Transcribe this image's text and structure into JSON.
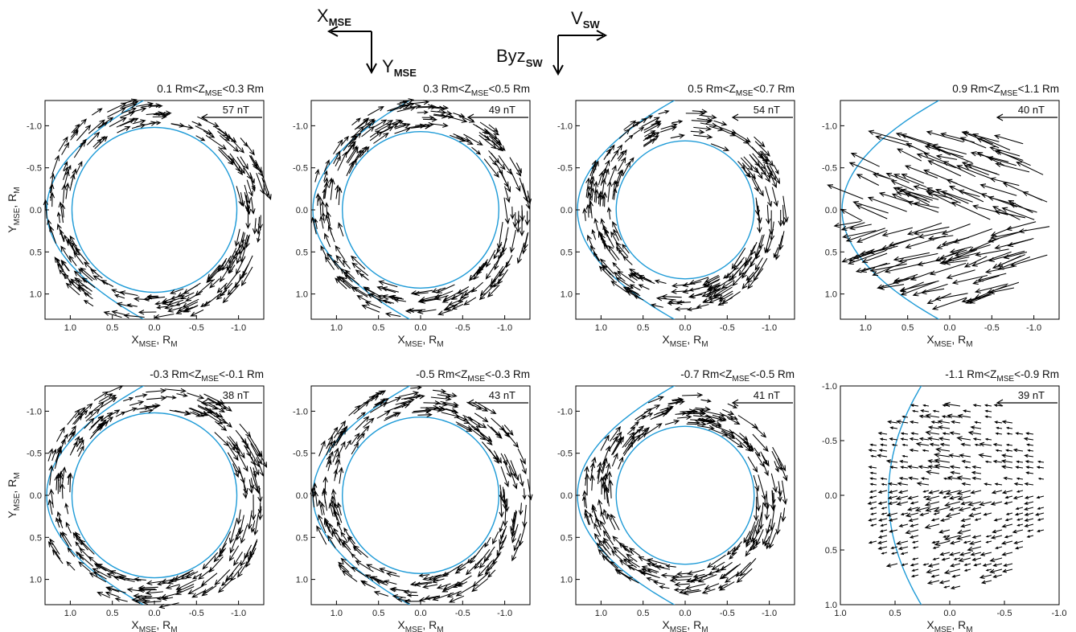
{
  "legend": {
    "x_label": "X",
    "x_sub": "MSE",
    "y_label": "Y",
    "y_sub": "MSE",
    "v_label": "V",
    "v_sub": "SW",
    "b_label": "Byz",
    "b_sub": "SW"
  },
  "colors": {
    "magnetopause": "#1f9bd7",
    "arrows": "#000000",
    "frame": "#000000"
  },
  "chart_data": [
    {
      "type": "quiver",
      "title_pre": "0.1 Rm<Z",
      "title_sub": "MSE",
      "title_post": "<0.3 Rm",
      "scale_label": "57 nT",
      "xlabel": "X",
      "xlabel_sub": "MSE",
      "xlabel_post": ", R",
      "xlabel_post_sub": "M",
      "ylabel": "Y",
      "ylabel_sub": "MSE",
      "ylabel_post": ", R",
      "ylabel_post_sub": "M",
      "xlim": [
        1.3,
        -1.3
      ],
      "ylim": [
        -1.3,
        1.3
      ],
      "xticks": [
        "1.0",
        "0.5",
        "0.0",
        "-0.5",
        "-1.0"
      ],
      "yticks": [
        "-1.0",
        "-0.5",
        "0.0",
        "0.5",
        "1.0"
      ],
      "planet_radius": 0.98,
      "pattern": "ring"
    },
    {
      "type": "quiver",
      "title_pre": "0.3 Rm<Z",
      "title_sub": "MSE",
      "title_post": "<0.5 Rm",
      "scale_label": "49 nT",
      "xlabel": "X",
      "xlabel_sub": "MSE",
      "xlabel_post": ", R",
      "xlabel_post_sub": "M",
      "ylabel": "",
      "ylabel_sub": "",
      "ylabel_post": "",
      "ylabel_post_sub": "",
      "xlim": [
        1.3,
        -1.3
      ],
      "ylim": [
        -1.3,
        1.3
      ],
      "xticks": [
        "1.0",
        "0.5",
        "0.0",
        "-0.5",
        "-1.0"
      ],
      "yticks": [
        "-1.0",
        "-0.5",
        "0.0",
        "0.5",
        "1.0"
      ],
      "planet_radius": 0.93,
      "pattern": "ring"
    },
    {
      "type": "quiver",
      "title_pre": "0.5 Rm<Z",
      "title_sub": "MSE",
      "title_post": "<0.7 Rm",
      "scale_label": "54 nT",
      "xlabel": "X",
      "xlabel_sub": "MSE",
      "xlabel_post": ", R",
      "xlabel_post_sub": "M",
      "ylabel": "",
      "ylabel_sub": "",
      "ylabel_post": "",
      "ylabel_post_sub": "",
      "xlim": [
        1.3,
        -1.3
      ],
      "ylim": [
        -1.3,
        1.3
      ],
      "xticks": [
        "1.0",
        "0.5",
        "0.0",
        "-0.5",
        "-1.0"
      ],
      "yticks": [
        "-1.0",
        "-0.5",
        "0.0",
        "0.5",
        "1.0"
      ],
      "planet_radius": 0.82,
      "pattern": "ring"
    },
    {
      "type": "quiver",
      "title_pre": "0.9 Rm<Z",
      "title_sub": "MSE",
      "title_post": "<1.1 Rm",
      "scale_label": "40 nT",
      "xlabel": "X",
      "xlabel_sub": "MSE",
      "xlabel_post": ", R",
      "xlabel_post_sub": "M",
      "ylabel": "",
      "ylabel_sub": "",
      "ylabel_post": "",
      "ylabel_post_sub": "",
      "xlim": [
        1.3,
        -1.3
      ],
      "ylim": [
        -1.3,
        1.3
      ],
      "xticks": [
        "1.0",
        "0.5",
        "0.0",
        "-0.5",
        "-1.0"
      ],
      "yticks": [
        "-1.0",
        "-0.5",
        "0.0",
        "0.5",
        "1.0"
      ],
      "planet_radius": 0,
      "pattern": "cap"
    },
    {
      "type": "quiver",
      "title_pre": "-0.3 Rm<Z",
      "title_sub": "MSE",
      "title_post": "<-0.1 Rm",
      "scale_label": "38 nT",
      "xlabel": "X",
      "xlabel_sub": "MSE",
      "xlabel_post": ", R",
      "xlabel_post_sub": "M",
      "ylabel": "Y",
      "ylabel_sub": "MSE",
      "ylabel_post": ", R",
      "ylabel_post_sub": "M",
      "xlim": [
        1.3,
        -1.3
      ],
      "ylim": [
        -1.3,
        1.3
      ],
      "xticks": [
        "1.0",
        "0.5",
        "0.0",
        "-0.5",
        "-1.0"
      ],
      "yticks": [
        "-1.0",
        "-0.5",
        "0.0",
        "0.5",
        "1.0"
      ],
      "planet_radius": 0.98,
      "pattern": "ring"
    },
    {
      "type": "quiver",
      "title_pre": "-0.5 Rm<Z",
      "title_sub": "MSE",
      "title_post": "<-0.3 Rm",
      "scale_label": "43 nT",
      "xlabel": "X",
      "xlabel_sub": "MSE",
      "xlabel_post": ", R",
      "xlabel_post_sub": "M",
      "ylabel": "",
      "ylabel_sub": "",
      "ylabel_post": "",
      "ylabel_post_sub": "",
      "xlim": [
        1.3,
        -1.3
      ],
      "ylim": [
        -1.3,
        1.3
      ],
      "xticks": [
        "1.0",
        "0.5",
        "0.0",
        "-0.5",
        "-1.0"
      ],
      "yticks": [
        "-1.0",
        "-0.5",
        "0.0",
        "0.5",
        "1.0"
      ],
      "planet_radius": 0.93,
      "pattern": "ring"
    },
    {
      "type": "quiver",
      "title_pre": "-0.7 Rm<Z",
      "title_sub": "MSE",
      "title_post": "<-0.5 Rm",
      "scale_label": "41 nT",
      "xlabel": "X",
      "xlabel_sub": "MSE",
      "xlabel_post": ", R",
      "xlabel_post_sub": "M",
      "ylabel": "",
      "ylabel_sub": "",
      "ylabel_post": "",
      "ylabel_post_sub": "",
      "xlim": [
        1.3,
        -1.3
      ],
      "ylim": [
        -1.3,
        1.3
      ],
      "xticks": [
        "1.0",
        "0.5",
        "0.0",
        "-0.5",
        "-1.0"
      ],
      "yticks": [
        "-1.0",
        "-0.5",
        "0.0",
        "0.5",
        "1.0"
      ],
      "planet_radius": 0.82,
      "pattern": "ring"
    },
    {
      "type": "quiver",
      "title_pre": "-1.1 Rm<Z",
      "title_sub": "MSE",
      "title_post": "<-0.9 Rm",
      "scale_label": "39 nT",
      "xlabel": "X",
      "xlabel_sub": "MSE",
      "xlabel_post": ", R",
      "xlabel_post_sub": "M",
      "ylabel": "",
      "ylabel_sub": "",
      "ylabel_post": "",
      "ylabel_post_sub": "",
      "xlim": [
        1.0,
        -1.0
      ],
      "ylim": [
        -1.0,
        1.0
      ],
      "xticks": [
        "1.0",
        "0.5",
        "0.0",
        "-0.5",
        "-1.0"
      ],
      "yticks": [
        "-1.0",
        "-0.5",
        "0.0",
        "0.5",
        "1.0"
      ],
      "planet_radius": 0,
      "pattern": "grid"
    }
  ]
}
